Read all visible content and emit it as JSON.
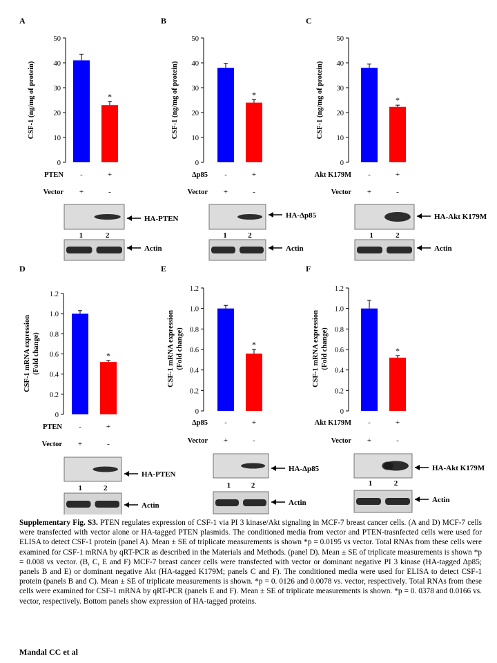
{
  "chart_data": [
    {
      "panel": "A",
      "type": "bar",
      "ylabel": "CSF-1 (ng/mg of protein)",
      "ylim": [
        0,
        50
      ],
      "yticks": [
        "0",
        "10",
        "20",
        "30",
        "40",
        "50"
      ],
      "values": [
        41,
        23
      ],
      "errors": [
        2.5,
        1.5
      ],
      "colors": [
        "#0000ff",
        "#ff0000"
      ],
      "significance": [
        "",
        "*"
      ],
      "rows": [
        {
          "label": "PTEN",
          "marks": [
            "-",
            "+"
          ]
        },
        {
          "label": "Vector",
          "marks": [
            "+",
            "-"
          ]
        }
      ],
      "blots": [
        {
          "label": "HA-PTEN",
          "lanes": [
            "1",
            "2"
          ]
        },
        {
          "label": "Actin",
          "lanes": []
        }
      ]
    },
    {
      "panel": "B",
      "type": "bar",
      "ylabel": "CSF-1 (ng/mg of protein)",
      "ylim": [
        0,
        50
      ],
      "yticks": [
        "0",
        "10",
        "20",
        "30",
        "40",
        "50"
      ],
      "values": [
        38,
        24
      ],
      "errors": [
        1.8,
        1.2
      ],
      "colors": [
        "#0000ff",
        "#ff0000"
      ],
      "significance": [
        "",
        "*"
      ],
      "rows": [
        {
          "label": "Δp85",
          "marks": [
            "-",
            "+"
          ]
        },
        {
          "label": "Vector",
          "marks": [
            "+",
            "-"
          ]
        }
      ],
      "blots": [
        {
          "label": "HA-Δp85",
          "lanes": [
            "1",
            "2"
          ]
        },
        {
          "label": "Actin",
          "lanes": []
        }
      ]
    },
    {
      "panel": "C",
      "type": "bar",
      "ylabel": "CSF-1 (ng/mg of protein)",
      "ylim": [
        0,
        50
      ],
      "yticks": [
        "0",
        "10",
        "20",
        "30",
        "40",
        "50"
      ],
      "values": [
        38,
        22.3
      ],
      "errors": [
        1.5,
        0.7
      ],
      "colors": [
        "#0000ff",
        "#ff0000"
      ],
      "significance": [
        "",
        "*"
      ],
      "rows": [
        {
          "label": "Akt K179M",
          "marks": [
            "-",
            "+"
          ]
        },
        {
          "label": "Vector",
          "marks": [
            "+",
            "-"
          ]
        }
      ],
      "blots": [
        {
          "label": "HA-Akt K179M",
          "lanes": [
            "1",
            "2"
          ]
        },
        {
          "label": "Actin",
          "lanes": []
        }
      ]
    },
    {
      "panel": "D",
      "type": "bar",
      "ylabel": "CSF-1 mRNA expression (Fold change)",
      "ylim": [
        0,
        1.2
      ],
      "yticks": [
        "0",
        "0.2",
        "0.4",
        "0.6",
        "0.8",
        "1.0",
        "1.2"
      ],
      "values": [
        1.0,
        0.52
      ],
      "errors": [
        0.03,
        0.015
      ],
      "colors": [
        "#0000ff",
        "#ff0000"
      ],
      "significance": [
        "",
        "*"
      ],
      "rows": [
        {
          "label": "PTEN",
          "marks": [
            "-",
            "+"
          ]
        },
        {
          "label": "Vector",
          "marks": [
            "+",
            "-"
          ]
        }
      ],
      "blots": [
        {
          "label": "HA-PTEN",
          "lanes": [
            "1",
            "2"
          ]
        },
        {
          "label": "Actin",
          "lanes": []
        }
      ]
    },
    {
      "panel": "E",
      "type": "bar",
      "ylabel": "CSF-1 mRNA expression (Fold change)",
      "ylim": [
        0,
        1.2
      ],
      "yticks": [
        "0",
        "0.2",
        "0.4",
        "0.6",
        "0.8",
        "1.0",
        "1.2"
      ],
      "values": [
        1.0,
        0.56
      ],
      "errors": [
        0.03,
        0.04
      ],
      "colors": [
        "#0000ff",
        "#ff0000"
      ],
      "significance": [
        "",
        "*"
      ],
      "rows": [
        {
          "label": "Δp85",
          "marks": [
            "-",
            "+"
          ]
        },
        {
          "label": "Vector",
          "marks": [
            "+",
            "-"
          ]
        }
      ],
      "blots": [
        {
          "label": "HA-Δp85",
          "lanes": [
            "1",
            "2"
          ]
        },
        {
          "label": "Actin",
          "lanes": []
        }
      ]
    },
    {
      "panel": "F",
      "type": "bar",
      "ylabel": "CSF-1 mRNA expression (Fold change)",
      "ylim": [
        0,
        1.2
      ],
      "yticks": [
        "0",
        "0.2",
        "0.4",
        "0.6",
        "0.8",
        "1.0",
        "1.2"
      ],
      "values": [
        1.0,
        0.52
      ],
      "errors": [
        0.08,
        0.02
      ],
      "colors": [
        "#0000ff",
        "#ff0000"
      ],
      "significance": [
        "",
        "*"
      ],
      "rows": [
        {
          "label": "Akt K179M",
          "marks": [
            "-",
            "+"
          ]
        },
        {
          "label": "Vector",
          "marks": [
            "+",
            "-"
          ]
        }
      ],
      "blots": [
        {
          "label": "HA-Akt K179M",
          "lanes": [
            "1",
            "2"
          ]
        },
        {
          "label": "Actin",
          "lanes": []
        }
      ]
    }
  ],
  "caption": {
    "title": "Supplementary Fig. S3.",
    "text": " PTEN regulates expression of CSF-1 via PI 3 kinase/Akt signaling in MCF-7 breast cancer cells. (A and D) MCF-7 cells were transfected with vector alone or HA-tagged PTEN plasmids. The conditioned media from vector and PTEN-trasnfected cells were used for ELISA to detect CSF-1 protein (panel A). Mean ± SE of triplicate measurements is shown *p = 0.0195 vs vector. Total RNAs from these cells were examined for CSF-1 mRNA by qRT-PCR as described in the Materials and Methods. (panel D). Mean ± SE of triplicate measurements is shown *p = 0.008 vs vector. (B, C, E and F) MCF-7 breast cancer cells were transfected with vector or dominant negative PI 3 kinase (HA-tagged Δp85; panels B and E) or dominant negative  Akt (HA-tagged K179M; panels C and F). The conditioned media were used for ELISA to detect CSF-1 protein (panels B and C). Mean ± SE of triplicate measurements is shown. *p = 0. 0126 and 0.0078 vs. vector, respectively. Total RNAs from these cells were examined for CSF-1 mRNA by qRT-PCR (panels E and F). Mean ± SE of triplicate measurements is shown. *p = 0. 0378 and 0.0166 vs. vector, respectively. Bottom panels show expression of HA-tagged proteins."
  },
  "author": "Mandal CC et al"
}
